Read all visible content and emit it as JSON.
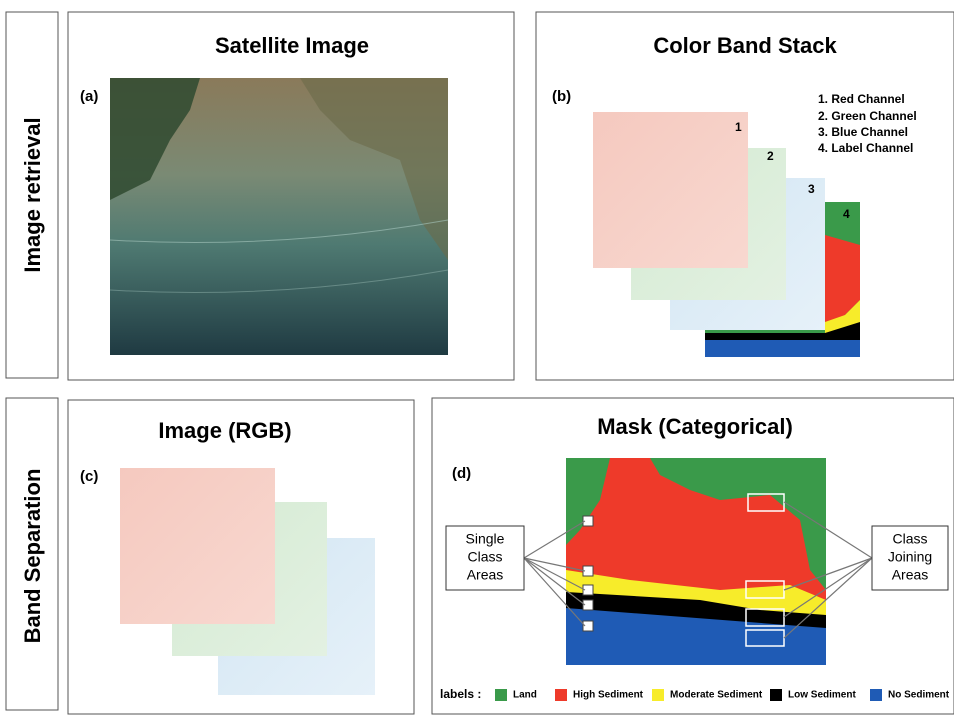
{
  "rows": [
    {
      "label": "Image retrieval"
    },
    {
      "label": "Band Separation"
    }
  ],
  "panels": [
    {
      "title": "Satellite Image",
      "tag": "(a)"
    },
    {
      "title": "Color Band Stack",
      "tag": "(b)",
      "channels": [
        "1. Red Channel",
        "2. Green Channel",
        "3. Blue Channel",
        "4. Label Channel"
      ],
      "layers": [
        "1",
        "2",
        "3",
        "4"
      ]
    },
    {
      "title": "Image (RGB)",
      "tag": "(c)"
    },
    {
      "title": "Mask (Categorical)",
      "tag": "(d)",
      "callouts": [
        [
          "Single",
          "Class",
          "Areas"
        ],
        [
          "Class",
          "Joining",
          "Areas"
        ]
      ]
    }
  ],
  "legend": {
    "title": "labels :",
    "items": [
      {
        "name": "Land",
        "color": "#3a9a4a"
      },
      {
        "name": "High Sediment",
        "color": "#ee3a2a"
      },
      {
        "name": "Moderate Sediment",
        "color": "#f7ec2a"
      },
      {
        "name": "Low Sediment",
        "color": "#000000"
      },
      {
        "name": "No Sediment",
        "color": "#1f5bb5"
      }
    ]
  }
}
